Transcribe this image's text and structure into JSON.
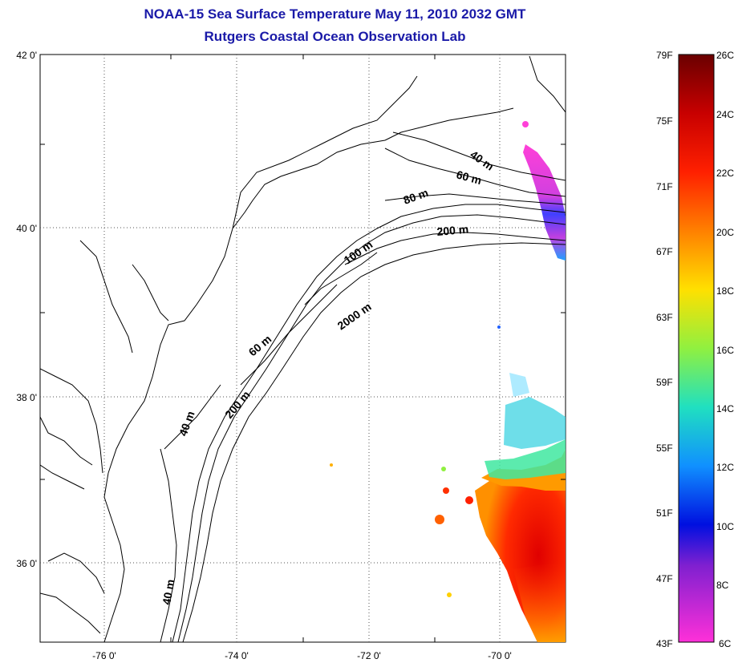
{
  "title": {
    "line1": "NOAA-15 Sea Surface Temperature May 11, 2010 2032 GMT",
    "line2": "Rutgers Coastal Ocean Observation Lab"
  },
  "map": {
    "lat_labels": [
      "42 0'",
      "40 0'",
      "38 0'",
      "36 0'"
    ],
    "lon_labels": [
      "-76 0'",
      "-74 0'",
      "-72 0'",
      "-70 0'"
    ],
    "contours": [
      {
        "label": "40 m"
      },
      {
        "label": "60 m"
      },
      {
        "label": "80 m"
      },
      {
        "label": "200 m"
      },
      {
        "label": "100 m"
      },
      {
        "label": "2000 m"
      },
      {
        "label": "60 m"
      },
      {
        "label": "200 m"
      },
      {
        "label": "40 m"
      },
      {
        "label": "40 m"
      }
    ]
  },
  "colorbar": {
    "f_labels": [
      "79F",
      "75F",
      "71F",
      "67F",
      "63F",
      "59F",
      "55F",
      "51F",
      "47F",
      "43F"
    ],
    "c_labels": [
      "26C",
      "24C",
      "22C",
      "20C",
      "18C",
      "16C",
      "14C",
      "12C",
      "10C",
      "8C",
      "6C"
    ]
  }
}
